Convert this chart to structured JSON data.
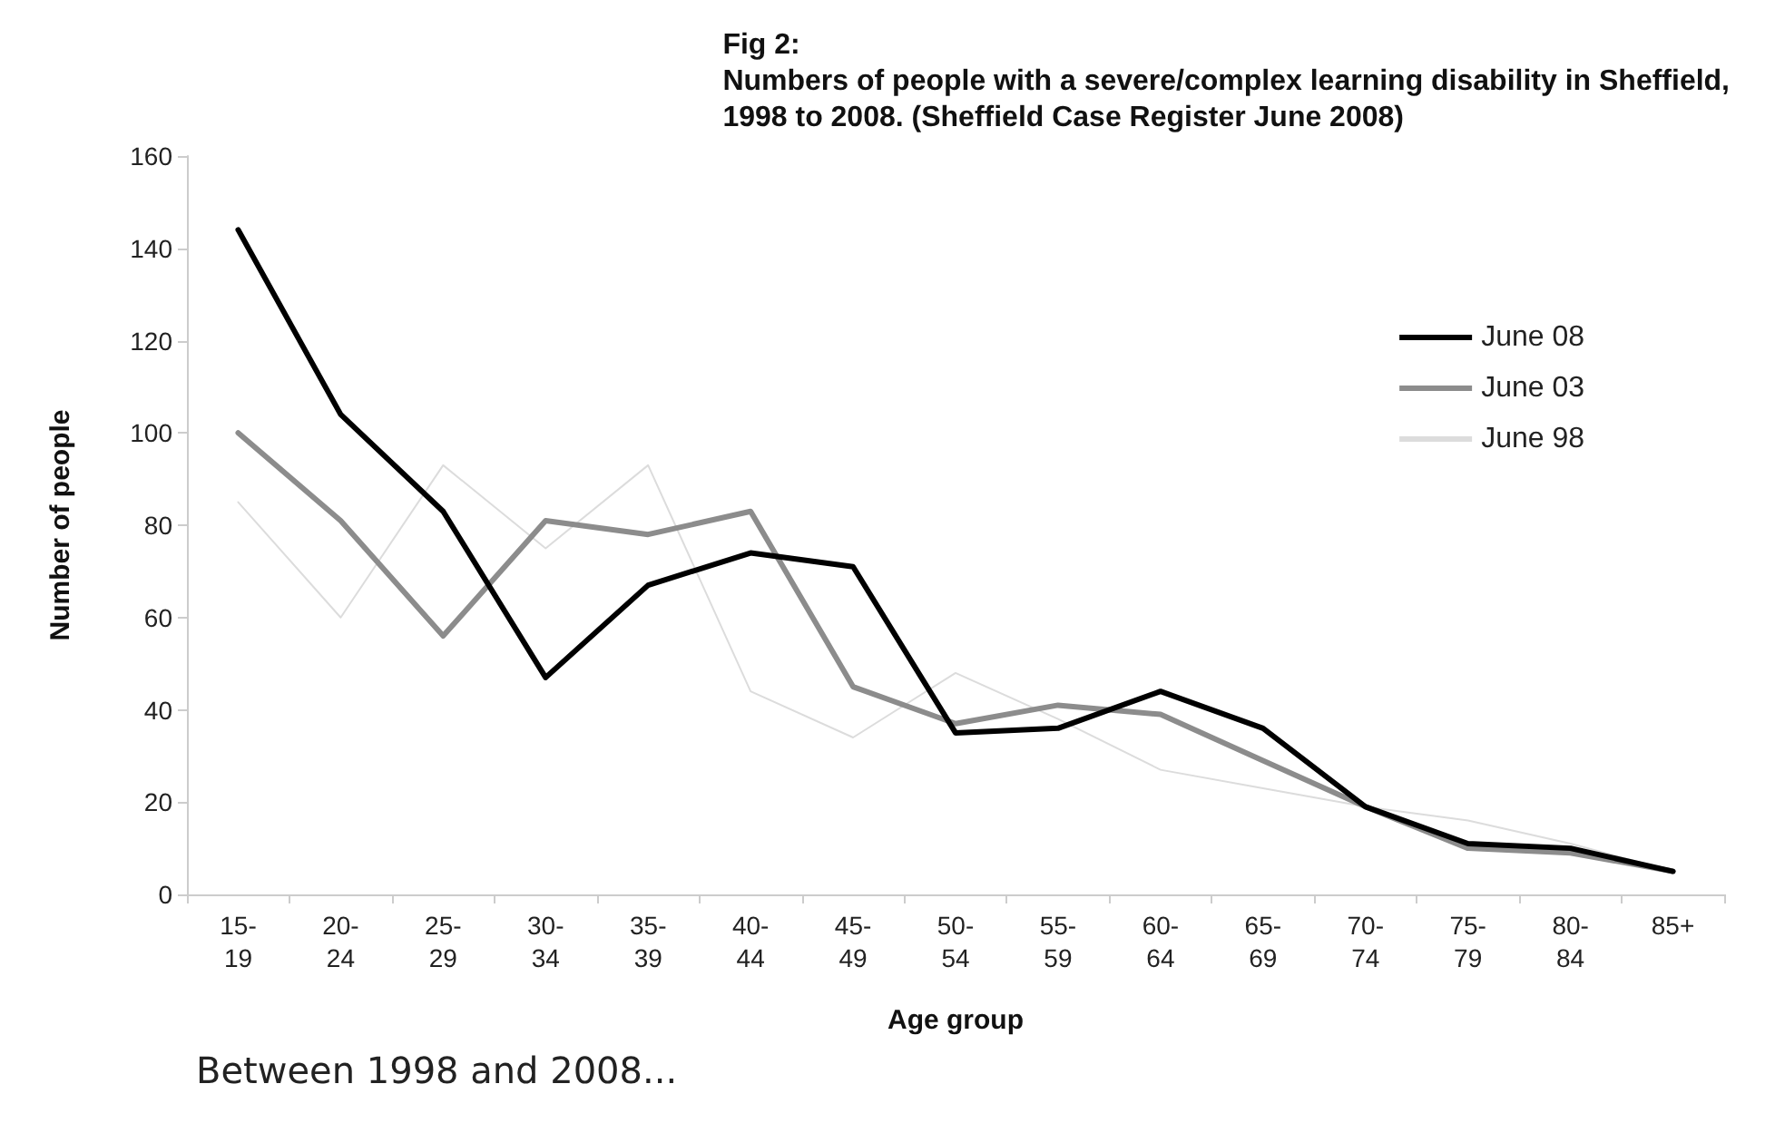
{
  "chart_data": {
    "type": "line",
    "title": "Fig 2:\nNumbers of people with a severe/complex learning disability in Sheffield,\n1998 to 2008. (Sheffield Case Register June 2008)",
    "xlabel": "Age group",
    "ylabel": "Number of people",
    "categories": [
      "15-19",
      "20-24",
      "25-29",
      "30-34",
      "35-39",
      "40-44",
      "45-49",
      "50-54",
      "55-59",
      "60-64",
      "65-69",
      "70-74",
      "75-79",
      "80-84",
      "85+"
    ],
    "series": [
      {
        "name": "June 08",
        "color": "#000000",
        "values": [
          144,
          104,
          83,
          47,
          67,
          74,
          71,
          35,
          36,
          44,
          36,
          19,
          11,
          10,
          5
        ]
      },
      {
        "name": "June 03",
        "color": "#8c8c8c",
        "values": [
          100,
          81,
          56,
          81,
          78,
          83,
          45,
          37,
          41,
          39,
          29,
          19,
          10,
          9,
          5
        ]
      },
      {
        "name": "June 98",
        "color": "#dcdcdc",
        "values": [
          85,
          60,
          93,
          75,
          93,
          44,
          34,
          48,
          38,
          27,
          23,
          19,
          16,
          11,
          5
        ]
      }
    ],
    "ylim": [
      0,
      160
    ],
    "yticks": [
      0,
      20,
      40,
      60,
      80,
      100,
      120,
      140,
      160
    ],
    "grid": false,
    "legend": "top right",
    "marker": "none",
    "line_style": "solid",
    "annotations": [
      "Between 1998 and 2008..."
    ]
  }
}
